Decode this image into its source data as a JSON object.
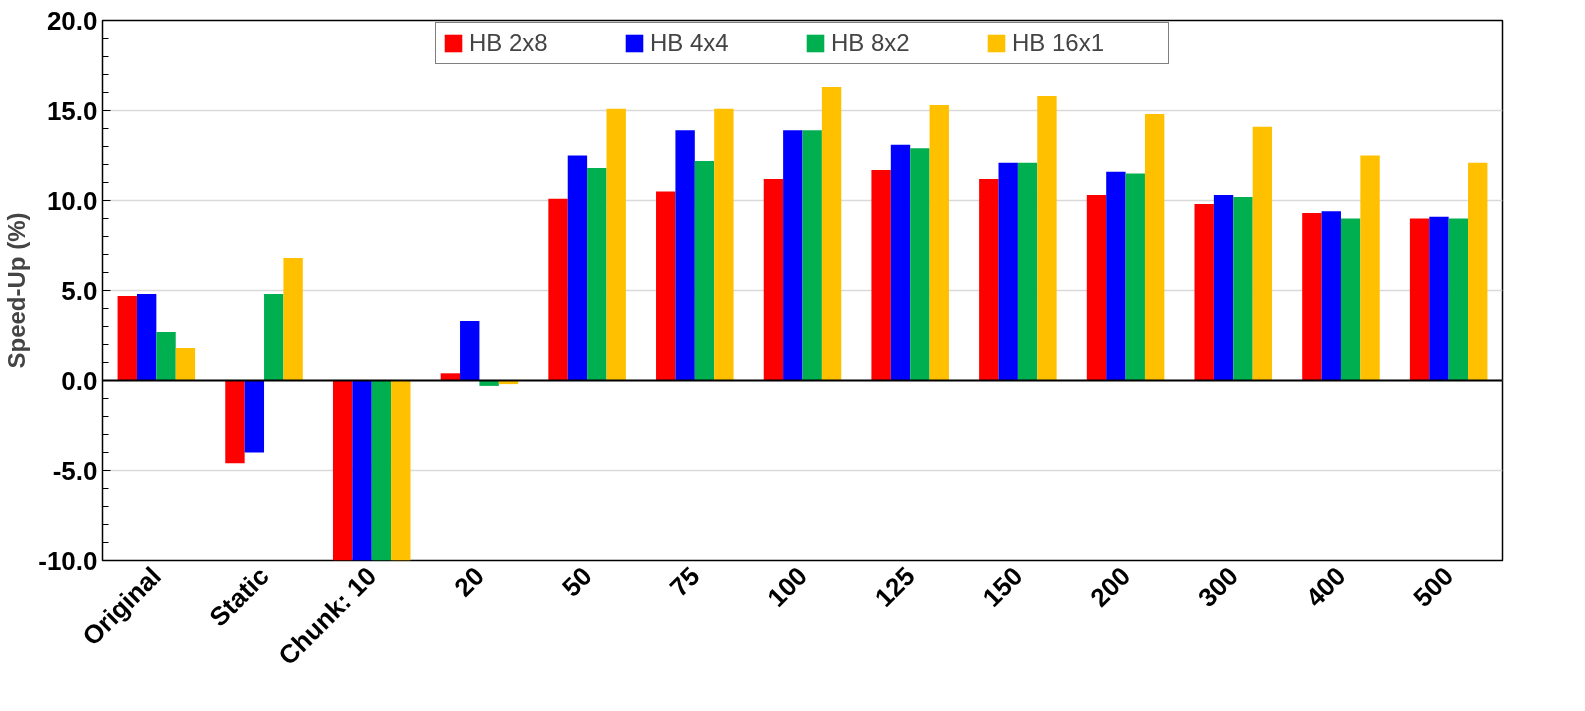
{
  "chart_data": {
    "type": "bar",
    "ylabel": "Speed-Up (%)",
    "categories": [
      "Original",
      "Static",
      "Chunk: 10",
      "20",
      "50",
      "75",
      "100",
      "125",
      "150",
      "200",
      "300",
      "400",
      "500"
    ],
    "series": [
      {
        "name": "HB 2x8",
        "color": "#ff0000",
        "values": [
          4.7,
          -4.6,
          -10,
          0.4,
          10.1,
          10.5,
          11.2,
          11.7,
          11.2,
          10.3,
          9.8,
          9.3,
          9.0
        ]
      },
      {
        "name": "HB 4x4",
        "color": "#0000ff",
        "values": [
          4.8,
          -4.0,
          -10,
          3.3,
          12.5,
          13.9,
          13.9,
          13.1,
          12.1,
          11.6,
          10.3,
          9.4,
          9.1
        ]
      },
      {
        "name": "HB 8x2",
        "color": "#00b050",
        "values": [
          2.7,
          4.8,
          -10,
          -0.3,
          11.8,
          12.2,
          13.9,
          12.9,
          12.1,
          11.5,
          10.2,
          9.0,
          9.0
        ]
      },
      {
        "name": "HB 16x1",
        "color": "#ffc000",
        "values": [
          1.8,
          6.8,
          -10,
          -0.2,
          15.1,
          15.1,
          16.3,
          15.3,
          15.8,
          14.8,
          14.1,
          12.5,
          12.1
        ]
      }
    ],
    "ylim": [
      -10,
      20
    ],
    "yticks": [
      {
        "value": -10,
        "label": "-10.0"
      },
      {
        "value": -5,
        "label": "-5.0"
      },
      {
        "value": 0,
        "label": "0.0"
      },
      {
        "value": 5,
        "label": "5.0"
      },
      {
        "value": 10,
        "label": "10.0"
      },
      {
        "value": 15,
        "label": "15.0"
      },
      {
        "value": 20,
        "label": "20.0"
      }
    ],
    "grid": "y",
    "legend": "top"
  }
}
